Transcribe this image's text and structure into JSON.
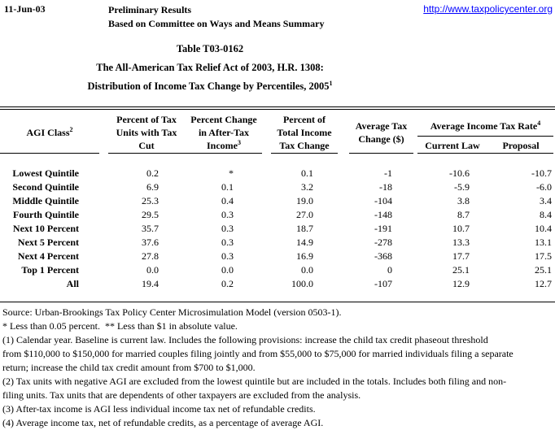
{
  "colors": {
    "link": "#0000ff",
    "text": "#000000",
    "background": "#ffffff"
  },
  "page_header": {
    "date": "11-Jun-03",
    "status_line1": "Preliminary Results",
    "status_line2": "Based on Committee on Ways and Means Summary",
    "url": "http://www.taxpolicycenter.org"
  },
  "title": {
    "line1": "Table T03-0162",
    "line2": "The All-American Tax Relief Act of 2003, H.R. 1308:",
    "line3": "Distribution of Income Tax Change by Percentiles, 2005",
    "line3_sup": "1"
  },
  "table": {
    "header": {
      "agi_class": {
        "label": "AGI Class",
        "sup": "2"
      },
      "col2": {
        "lines": [
          "Percent of Tax",
          "Units with Tax",
          "Cut"
        ]
      },
      "col3": {
        "lines": [
          "Percent Change",
          "in After-Tax",
          "Income"
        ],
        "sup": "3"
      },
      "col4": {
        "lines": [
          "Percent of",
          "Total Income",
          "Tax Change"
        ]
      },
      "col5": {
        "lines": [
          "Average Tax",
          "Change ($)"
        ]
      },
      "group": {
        "label": "Average Income Tax Rate",
        "sup": "4"
      },
      "sub1": "Current Law",
      "sub2": "Proposal"
    },
    "rows": [
      {
        "label": "Lowest Quintile",
        "values": [
          "0.2",
          "*",
          "0.1",
          "-1",
          "-10.6",
          "-10.7"
        ]
      },
      {
        "label": "Second Quintile",
        "values": [
          "6.9",
          "0.1",
          "3.2",
          "-18",
          "-5.9",
          "-6.0"
        ]
      },
      {
        "label": "Middle Quintile",
        "values": [
          "25.3",
          "0.4",
          "19.0",
          "-104",
          "3.8",
          "3.4"
        ]
      },
      {
        "label": "Fourth Quintile",
        "values": [
          "29.5",
          "0.3",
          "27.0",
          "-148",
          "8.7",
          "8.4"
        ]
      },
      {
        "label": "Next 10 Percent",
        "values": [
          "35.7",
          "0.3",
          "18.7",
          "-191",
          "10.7",
          "10.4"
        ]
      },
      {
        "label": "Next 5 Percent",
        "values": [
          "37.6",
          "0.3",
          "14.9",
          "-278",
          "13.3",
          "13.1"
        ]
      },
      {
        "label": "Next 4 Percent",
        "values": [
          "27.8",
          "0.3",
          "16.9",
          "-368",
          "17.7",
          "17.5"
        ]
      },
      {
        "label": "Top 1 Percent",
        "values": [
          "0.0",
          "0.0",
          "0.0",
          "0",
          "25.1",
          "25.1"
        ]
      },
      {
        "label": "All",
        "values": [
          "19.4",
          "0.2",
          "100.0",
          "-107",
          "12.9",
          "12.7"
        ]
      }
    ]
  },
  "footnotes": [
    "Source: Urban-Brookings Tax Policy Center Microsimulation Model (version 0503-1).",
    "* Less than 0.05 percent.  ** Less than $1 in absolute value.",
    "(1) Calendar year. Baseline is current law. Includes the following provisions: increase the child tax credit phaseout threshold",
    "from $110,000 to $150,000 for married couples filing jointly and from $55,000 to $75,000 for married individuals filing a separate",
    "return; increase the child tax credit amount from $700 to $1,000.",
    "(2) Tax units with negative AGI are excluded from the lowest quintile but are included in the totals. Includes both filing and non-",
    "filing units. Tax units that are dependents of other taxpayers are excluded from the analysis.",
    "(3) After-tax income is AGI less individual income tax net of refundable credits.",
    "(4) Average income tax, net of refundable credits, as a percentage of average AGI."
  ]
}
